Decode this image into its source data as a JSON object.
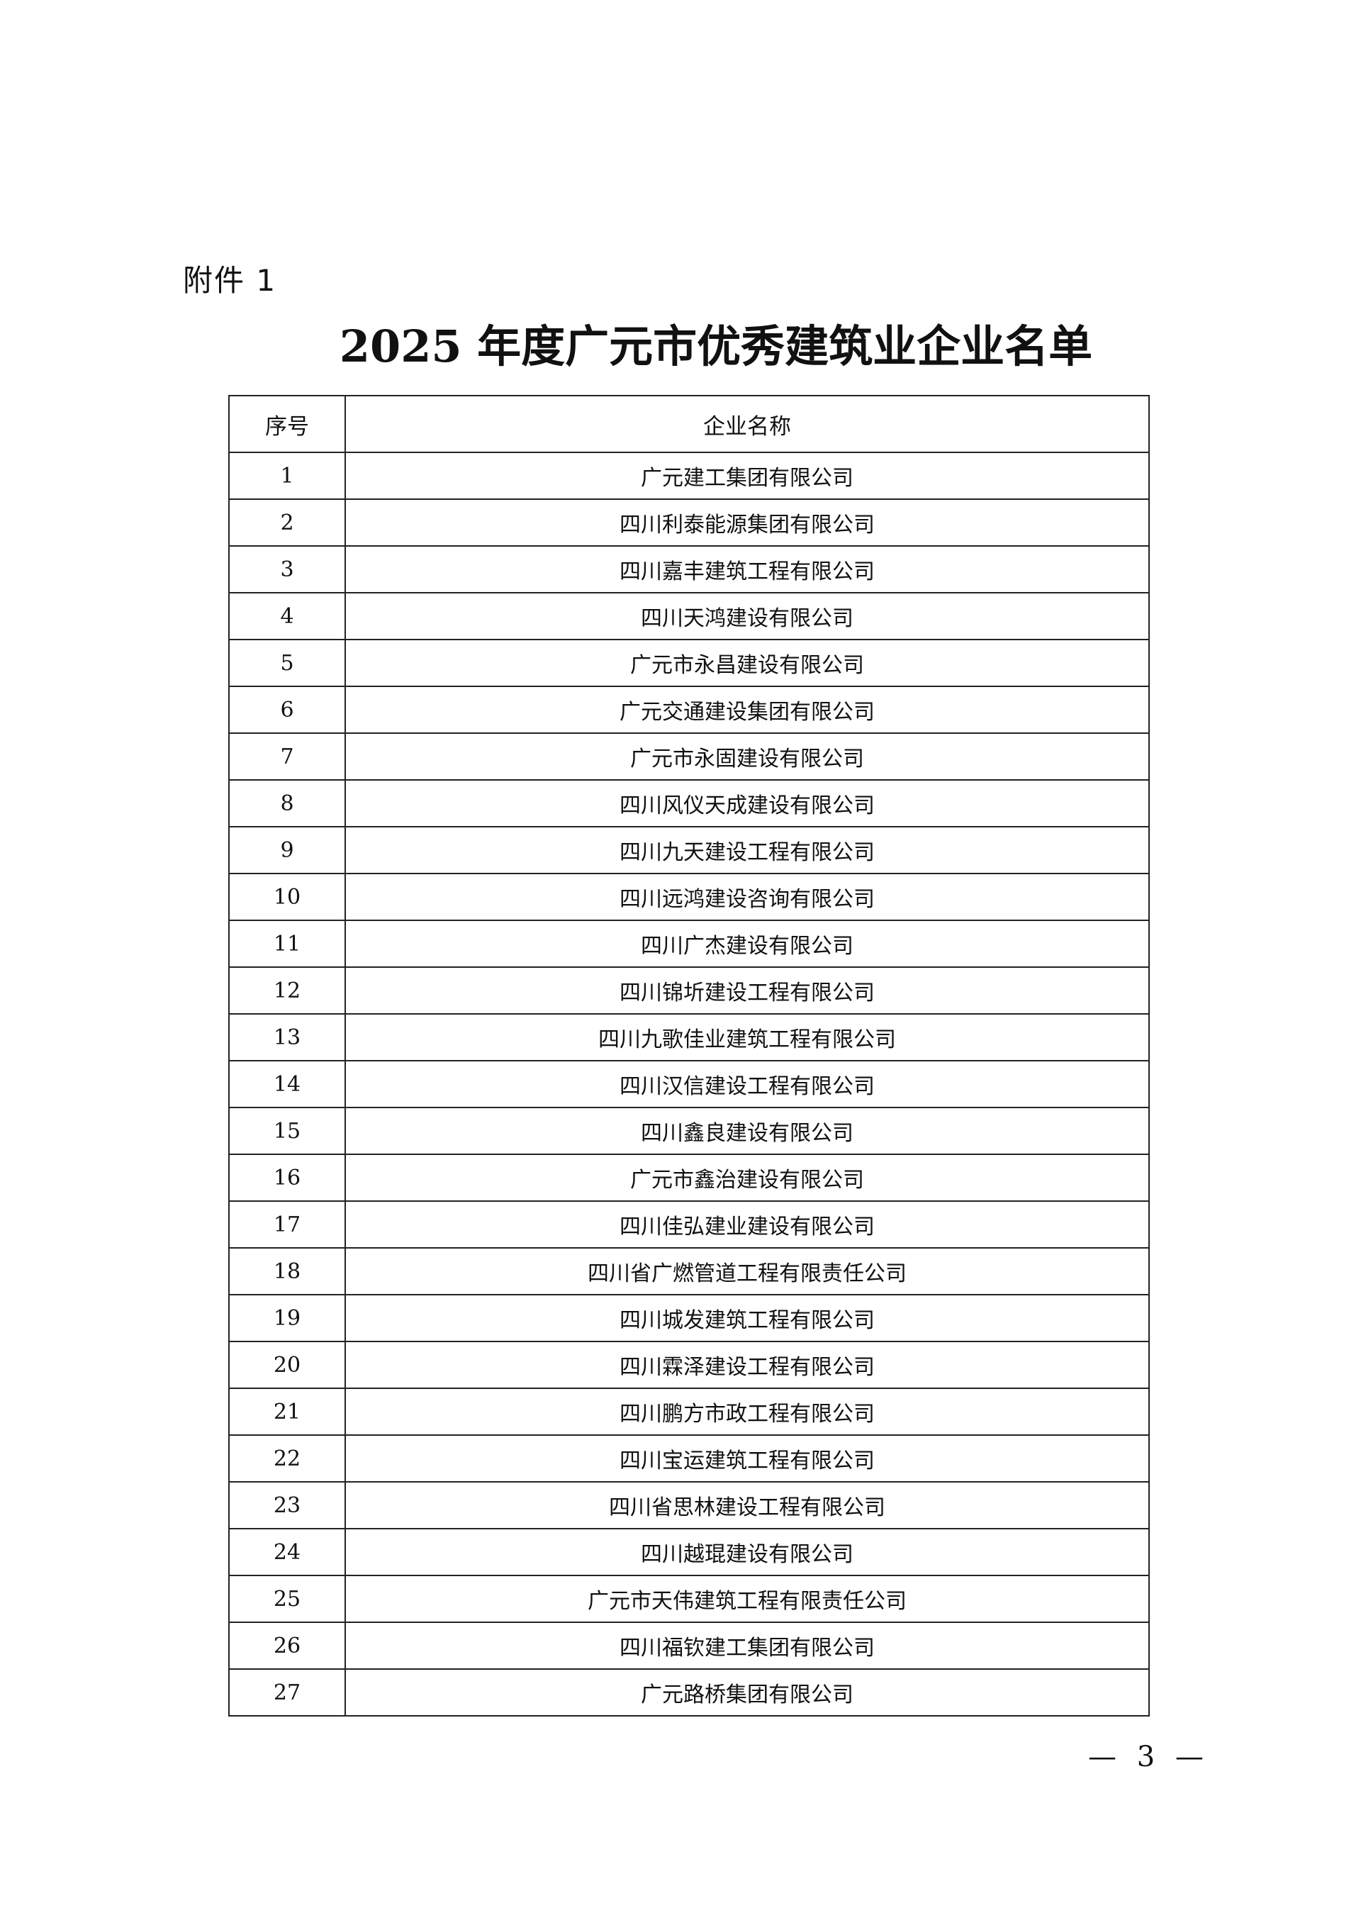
{
  "attachment_label": "附件 1",
  "title": "2025 年度广元市优秀建筑业企业名单",
  "table": {
    "headers": [
      "序号",
      "企业名称"
    ],
    "rows": [
      [
        "1",
        "广元建工集团有限公司"
      ],
      [
        "2",
        "四川利泰能源集团有限公司"
      ],
      [
        "3",
        "四川嘉丰建筑工程有限公司"
      ],
      [
        "4",
        "四川天鸿建设有限公司"
      ],
      [
        "5",
        "广元市永昌建设有限公司"
      ],
      [
        "6",
        "广元交通建设集团有限公司"
      ],
      [
        "7",
        "广元市永固建设有限公司"
      ],
      [
        "8",
        "四川风仪天成建设有限公司"
      ],
      [
        "9",
        "四川九天建设工程有限公司"
      ],
      [
        "10",
        "四川远鸿建设咨询有限公司"
      ],
      [
        "11",
        "四川广杰建设有限公司"
      ],
      [
        "12",
        "四川锦圻建设工程有限公司"
      ],
      [
        "13",
        "四川九歌佳业建筑工程有限公司"
      ],
      [
        "14",
        "四川汉信建设工程有限公司"
      ],
      [
        "15",
        "四川鑫良建设有限公司"
      ],
      [
        "16",
        "广元市鑫治建设有限公司"
      ],
      [
        "17",
        "四川佳弘建业建设有限公司"
      ],
      [
        "18",
        "四川省广燃管道工程有限责任公司"
      ],
      [
        "19",
        "四川城发建筑工程有限公司"
      ],
      [
        "20",
        "四川霖泽建设工程有限公司"
      ],
      [
        "21",
        "四川鹏方市政工程有限公司"
      ],
      [
        "22",
        "四川宝运建筑工程有限公司"
      ],
      [
        "23",
        "四川省思林建设工程有限公司"
      ],
      [
        "24",
        "四川越琨建设有限公司"
      ],
      [
        "25",
        "广元市天伟建筑工程有限责任公司"
      ],
      [
        "26",
        "四川福钦建工集团有限公司"
      ],
      [
        "27",
        "广元路桥集团有限公司"
      ]
    ]
  },
  "page_number": "— 3 —"
}
